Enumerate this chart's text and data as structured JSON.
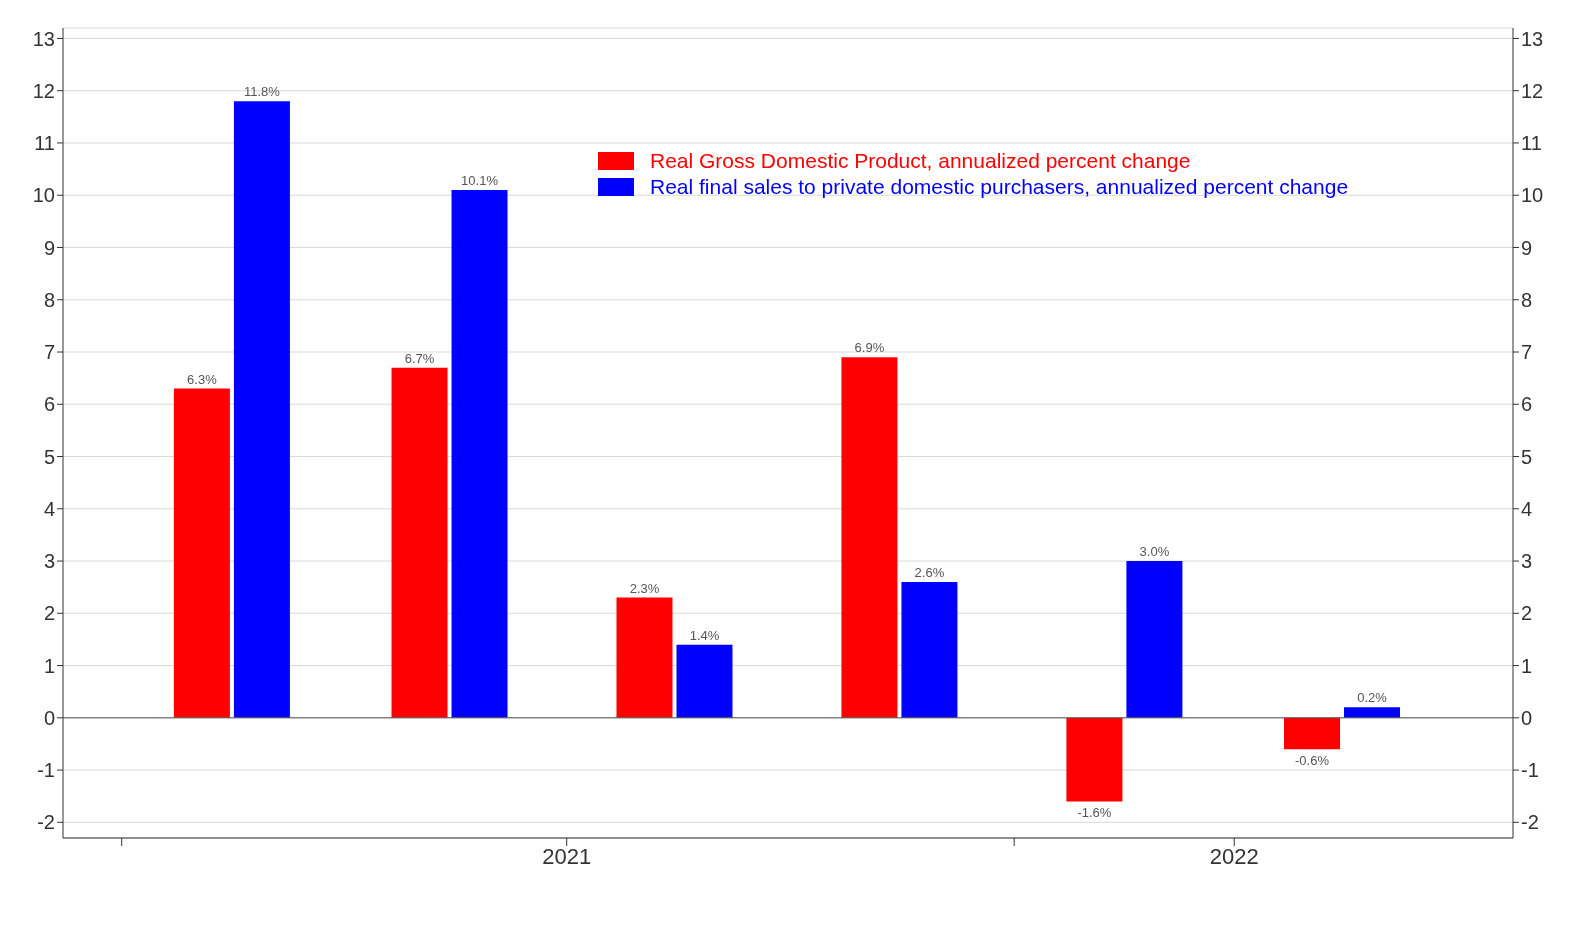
{
  "chart_data": {
    "type": "bar",
    "x": [
      "2021-02-15",
      "2021-05-15",
      "2021-08-15",
      "2021-11-15",
      "2022-02-15",
      "2022-05-15"
    ],
    "xlim": [
      "2020-12-08",
      "2022-07-24"
    ],
    "xticks": [
      {
        "value": "2021-01-01",
        "label": null
      },
      {
        "value": "2021-07-02",
        "label": "2021"
      },
      {
        "value": "2022-01-01",
        "label": null
      },
      {
        "value": "2022-04-01",
        "label": "2022"
      }
    ],
    "series": [
      {
        "name": "Real Gross Domestic Product, annualized percent change",
        "color": "#ff0000",
        "values": [
          6.3,
          6.7,
          2.3,
          6.9,
          -1.6,
          -0.6
        ],
        "value_labels": [
          "6.3%",
          "6.7%",
          "2.3%",
          "6.9%",
          "-1.6%",
          "-0.6%"
        ]
      },
      {
        "name": "Real final sales to private domestic purchasers, annualized percent change",
        "color": "#0000ff",
        "values": [
          11.8,
          10.1,
          1.4,
          2.6,
          3.0,
          0.2
        ],
        "value_labels": [
          "11.8%",
          "10.1%",
          "1.4%",
          "2.6%",
          "3.0%",
          "0.2%"
        ]
      }
    ],
    "ylim": [
      -2.3,
      13.2
    ],
    "yticks": [
      -2,
      -1,
      0,
      1,
      2,
      3,
      4,
      5,
      6,
      7,
      8,
      9,
      10,
      11,
      12,
      13
    ],
    "y2lim": [
      -2.3,
      13.2
    ],
    "y2ticks": [
      -2,
      -1,
      0,
      1,
      2,
      3,
      4,
      5,
      6,
      7,
      8,
      9,
      10,
      11,
      12,
      13
    ],
    "grid": "y",
    "legend": "top"
  }
}
